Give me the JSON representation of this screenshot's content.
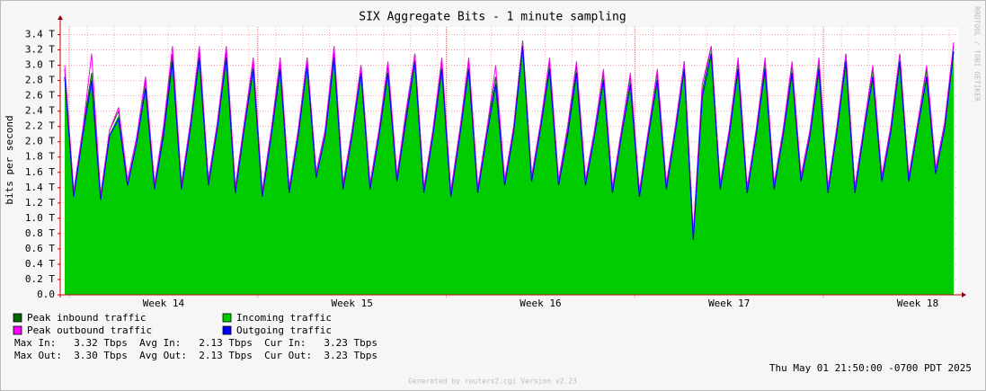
{
  "chart_data": {
    "type": "area",
    "title": "SIX Aggregate Bits - 1 minute sampling",
    "y_label": "bits per second",
    "categories": [
      null,
      null,
      null,
      null,
      null,
      null,
      null,
      null,
      null,
      null,
      null,
      "Week 14",
      null,
      null,
      null,
      null,
      null,
      null,
      null,
      null,
      null,
      null,
      null,
      null,
      null,
      null,
      null,
      null,
      null,
      null,
      null,
      null,
      "Week 15",
      null,
      null,
      null,
      null,
      null,
      null,
      null,
      null,
      null,
      null,
      null,
      null,
      null,
      null,
      null,
      null,
      null,
      null,
      null,
      null,
      "Week 16",
      null,
      null,
      null,
      null,
      null,
      null,
      null,
      null,
      null,
      null,
      null,
      null,
      null,
      null,
      null,
      null,
      null,
      null,
      null,
      null,
      "Week 17",
      null,
      null,
      null,
      null,
      null,
      null,
      null,
      null,
      null,
      null,
      null,
      null,
      null,
      null,
      null,
      null,
      null,
      null,
      null,
      null,
      "Week 18",
      null,
      null,
      null,
      null
    ],
    "series": [
      {
        "name": "Incoming traffic",
        "color": "#00cc00",
        "values": [
          2.9,
          1.3,
          2.1,
          2.85,
          1.25,
          2.1,
          2.35,
          1.45,
          2.0,
          2.75,
          1.4,
          2.1,
          3.1,
          1.4,
          2.2,
          3.15,
          1.45,
          2.2,
          3.15,
          1.35,
          2.2,
          3.0,
          1.3,
          2.1,
          3.0,
          1.35,
          2.1,
          3.05,
          1.55,
          2.1,
          3.15,
          1.4,
          2.1,
          2.95,
          1.4,
          2.1,
          2.95,
          1.5,
          2.3,
          3.1,
          1.35,
          2.1,
          3.0,
          1.3,
          2.1,
          3.0,
          1.35,
          2.1,
          2.8,
          1.45,
          2.15,
          3.3,
          1.5,
          2.2,
          3.0,
          1.45,
          2.1,
          2.95,
          1.45,
          2.1,
          2.85,
          1.35,
          2.1,
          2.8,
          1.3,
          2.1,
          2.85,
          1.4,
          2.15,
          3.0,
          0.75,
          2.6,
          3.2,
          1.4,
          2.1,
          3.0,
          1.35,
          2.1,
          3.0,
          1.4,
          2.1,
          2.95,
          1.5,
          2.1,
          3.0,
          1.35,
          2.15,
          3.1,
          1.35,
          2.15,
          2.9,
          1.5,
          2.15,
          3.1,
          1.5,
          2.2,
          2.9,
          1.6,
          2.2,
          3.2
        ]
      },
      {
        "name": "Outgoing traffic",
        "color": "#0000ff",
        "values": [
          2.85,
          1.28,
          2.08,
          2.8,
          1.24,
          2.08,
          2.3,
          1.43,
          1.98,
          2.7,
          1.38,
          2.08,
          3.05,
          1.38,
          2.18,
          3.1,
          1.43,
          2.18,
          3.1,
          1.33,
          2.18,
          2.95,
          1.28,
          2.08,
          2.95,
          1.33,
          2.08,
          3.0,
          1.53,
          2.08,
          3.1,
          1.38,
          2.08,
          2.9,
          1.38,
          2.08,
          2.9,
          1.48,
          2.28,
          3.05,
          1.33,
          2.08,
          2.95,
          1.28,
          2.08,
          2.95,
          1.33,
          2.08,
          2.75,
          1.43,
          2.13,
          3.25,
          1.48,
          2.18,
          2.95,
          1.43,
          2.08,
          2.9,
          1.43,
          2.08,
          2.8,
          1.33,
          2.08,
          2.75,
          1.28,
          2.08,
          2.8,
          1.38,
          2.13,
          2.95,
          0.72,
          2.58,
          3.15,
          1.38,
          2.08,
          2.95,
          1.33,
          2.08,
          2.95,
          1.38,
          2.08,
          2.9,
          1.48,
          2.08,
          2.95,
          1.33,
          2.13,
          3.05,
          1.33,
          2.13,
          2.85,
          1.48,
          2.13,
          3.05,
          1.48,
          2.18,
          2.85,
          1.58,
          2.18,
          3.18
        ]
      },
      {
        "name": "Peak inbound traffic",
        "color": "#006600",
        "values": [
          2.95,
          1.35,
          2.15,
          2.9,
          1.3,
          2.15,
          2.4,
          1.5,
          2.05,
          2.8,
          1.45,
          2.15,
          3.15,
          1.45,
          2.25,
          3.2,
          1.5,
          2.25,
          3.2,
          1.4,
          2.25,
          3.05,
          1.35,
          2.15,
          3.05,
          1.4,
          2.15,
          3.1,
          1.6,
          2.15,
          3.2,
          1.45,
          2.15,
          3.0,
          1.45,
          2.15,
          3.0,
          1.55,
          2.35,
          3.15,
          1.4,
          2.15,
          3.05,
          1.35,
          2.15,
          3.05,
          1.4,
          2.15,
          2.85,
          1.5,
          2.2,
          3.32,
          1.55,
          2.25,
          3.05,
          1.5,
          2.15,
          3.0,
          1.5,
          2.15,
          2.9,
          1.4,
          2.15,
          2.85,
          1.35,
          2.15,
          2.9,
          1.45,
          2.2,
          3.05,
          0.8,
          2.65,
          3.25,
          1.45,
          2.15,
          3.05,
          1.4,
          2.15,
          3.05,
          1.45,
          2.15,
          3.0,
          1.55,
          2.15,
          3.05,
          1.4,
          2.2,
          3.15,
          1.4,
          2.2,
          2.95,
          1.55,
          2.2,
          3.15,
          1.55,
          2.25,
          2.95,
          1.65,
          2.25,
          3.25
        ]
      },
      {
        "name": "Peak outbound traffic",
        "color": "#ff00ff",
        "values": [
          3.0,
          1.35,
          2.15,
          3.15,
          1.3,
          2.15,
          2.45,
          1.5,
          2.05,
          2.85,
          1.45,
          2.2,
          3.25,
          1.45,
          2.25,
          3.25,
          1.5,
          2.25,
          3.25,
          1.4,
          2.25,
          3.1,
          1.35,
          2.15,
          3.1,
          1.4,
          2.15,
          3.1,
          1.6,
          2.15,
          3.25,
          1.45,
          2.15,
          3.0,
          1.45,
          2.15,
          3.05,
          1.55,
          2.4,
          3.15,
          1.4,
          2.15,
          3.1,
          1.35,
          2.15,
          3.1,
          1.4,
          2.15,
          3.0,
          1.5,
          2.2,
          3.3,
          1.55,
          2.25,
          3.1,
          1.5,
          2.2,
          3.05,
          1.5,
          2.15,
          2.95,
          1.4,
          2.15,
          2.9,
          1.35,
          2.15,
          2.95,
          1.45,
          2.2,
          3.05,
          0.8,
          2.75,
          3.25,
          1.45,
          2.15,
          3.1,
          1.4,
          2.15,
          3.1,
          1.45,
          2.15,
          3.05,
          1.55,
          2.15,
          3.1,
          1.4,
          2.2,
          3.15,
          1.4,
          2.2,
          3.0,
          1.55,
          2.2,
          3.15,
          1.55,
          2.25,
          3.0,
          1.65,
          2.25,
          3.3
        ]
      }
    ],
    "ylim": [
      0,
      3.5
    ],
    "yticks": [
      {
        "value": 0,
        "label": "0.0"
      },
      {
        "value": 0.2,
        "label": "0.2 T"
      },
      {
        "value": 0.4,
        "label": "0.4 T"
      },
      {
        "value": 0.6,
        "label": "0.6 T"
      },
      {
        "value": 0.8,
        "label": "0.8 T"
      },
      {
        "value": 1.0,
        "label": "1.0 T"
      },
      {
        "value": 1.2,
        "label": "1.2 T"
      },
      {
        "value": 1.4,
        "label": "1.4 T"
      },
      {
        "value": 1.6,
        "label": "1.6 T"
      },
      {
        "value": 1.8,
        "label": "1.8 T"
      },
      {
        "value": 2.0,
        "label": "2.0 T"
      },
      {
        "value": 2.2,
        "label": "2.2 T"
      },
      {
        "value": 2.4,
        "label": "2.4 T"
      },
      {
        "value": 2.6,
        "label": "2.6 T"
      },
      {
        "value": 2.8,
        "label": "2.8 T"
      },
      {
        "value": 3.0,
        "label": "3.0 T"
      },
      {
        "value": 3.2,
        "label": "3.2 T"
      },
      {
        "value": 3.4,
        "label": "3.4 T"
      }
    ],
    "grid": true,
    "stats": [
      "Max In:   3.32 Tbps  Avg In:   2.13 Tbps  Cur In:   3.23 Tbps",
      "Max Out:  3.30 Tbps  Avg Out:  2.13 Tbps  Cur Out:  3.23 Tbps"
    ],
    "timestamp": "Thu May 01 21:50:00 -0700 PDT 2025",
    "credit": "Generated by routers2.cgi Version v2.23",
    "watermark": "RRDTOOL / TOBI OETIKER"
  }
}
